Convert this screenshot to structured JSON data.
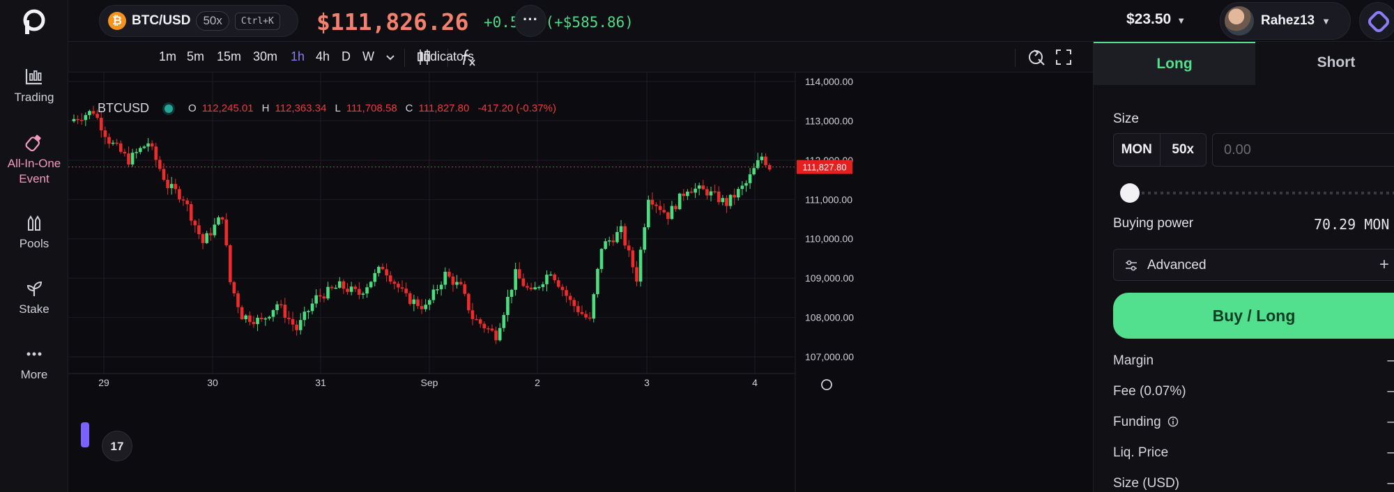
{
  "sidebar": {
    "items": [
      {
        "label": "Trading",
        "icon": "trading-chart-icon"
      },
      {
        "label": "All-In-One Event",
        "icon": "bottle-icon"
      },
      {
        "label": "Pools",
        "icon": "pools-icon"
      },
      {
        "label": "Stake",
        "icon": "sprout-icon"
      },
      {
        "label": "More",
        "icon": "dots-icon"
      }
    ]
  },
  "header": {
    "pair": "BTC/USD",
    "leverage": "50x",
    "shortcut": "Ctrl+K",
    "price": "$111,826.26",
    "change": "+0.52% (+$585.86)",
    "more": "···",
    "balance": "$23.50",
    "username": "Rahez13"
  },
  "toolbar": {
    "timeframes": [
      "1m",
      "5m",
      "15m",
      "30m",
      "1h",
      "4h",
      "D",
      "W"
    ],
    "active_timeframe": "1h",
    "indicators": "Indicators"
  },
  "legend": {
    "symbol": "BTCUSD",
    "o_key": "O",
    "o_val": "112,245.01",
    "h_key": "H",
    "h_val": "112,363.34",
    "l_key": "L",
    "l_val": "111,708.58",
    "c_key": "C",
    "c_val": "111,827.80",
    "change": "-417.20 (-0.37%)"
  },
  "chart_data": {
    "type": "candlestick",
    "symbol": "BTCUSD",
    "interval": "1h",
    "y_ticks": [
      "114,000.00",
      "113,000.00",
      "112,000.00",
      "111,000.00",
      "110,000.00",
      "109,000.00",
      "108,000.00",
      "107,000.00"
    ],
    "ylim": [
      106800,
      114200
    ],
    "x_ticks": [
      "29",
      "30",
      "31",
      "Sep",
      "2",
      "3",
      "4"
    ],
    "last_price": 111827.8,
    "last_price_label": "111,827.80",
    "colors": {
      "up": "#4ade80",
      "down": "#ef2b2b"
    },
    "anchors": [
      {
        "t": 0,
        "v": 113050
      },
      {
        "t": 5,
        "v": 113250
      },
      {
        "t": 9,
        "v": 112500
      },
      {
        "t": 14,
        "v": 112000
      },
      {
        "t": 19,
        "v": 112450
      },
      {
        "t": 24,
        "v": 111350
      },
      {
        "t": 28,
        "v": 111050
      },
      {
        "t": 33,
        "v": 109900
      },
      {
        "t": 38,
        "v": 110600
      },
      {
        "t": 40,
        "v": 108900
      },
      {
        "t": 43,
        "v": 108050
      },
      {
        "t": 48,
        "v": 107900
      },
      {
        "t": 52,
        "v": 108350
      },
      {
        "t": 57,
        "v": 107700
      },
      {
        "t": 62,
        "v": 108500
      },
      {
        "t": 68,
        "v": 108800
      },
      {
        "t": 73,
        "v": 108600
      },
      {
        "t": 79,
        "v": 109300
      },
      {
        "t": 85,
        "v": 108500
      },
      {
        "t": 90,
        "v": 108250
      },
      {
        "t": 95,
        "v": 109100
      },
      {
        "t": 99,
        "v": 108750
      },
      {
        "t": 102,
        "v": 108000
      },
      {
        "t": 108,
        "v": 107550
      },
      {
        "t": 113,
        "v": 109100
      },
      {
        "t": 117,
        "v": 108600
      },
      {
        "t": 122,
        "v": 109200
      },
      {
        "t": 127,
        "v": 108400
      },
      {
        "t": 132,
        "v": 107900
      },
      {
        "t": 135,
        "v": 109800
      },
      {
        "t": 140,
        "v": 110200
      },
      {
        "t": 144,
        "v": 109000
      },
      {
        "t": 147,
        "v": 111100
      },
      {
        "t": 152,
        "v": 110600
      },
      {
        "t": 157,
        "v": 111300
      },
      {
        "t": 162,
        "v": 111200
      },
      {
        "t": 167,
        "v": 110900
      },
      {
        "t": 172,
        "v": 111400
      },
      {
        "t": 176,
        "v": 112100
      },
      {
        "t": 178,
        "v": 111830
      }
    ]
  },
  "panel": {
    "tabs": {
      "long": "Long",
      "short": "Short"
    },
    "size_label": "Size",
    "unit": "MON",
    "leverage": "50x",
    "size_placeholder": "0.00",
    "slider_value": 0,
    "buying_power_label": "Buying power",
    "buying_power_value": "70.29 MON",
    "advanced_label": "Advanced",
    "advanced_plus": "+",
    "action_button": "Buy / Long",
    "rows": [
      {
        "label": "Margin",
        "value": "–"
      },
      {
        "label": "Fee (0.07%)",
        "value": "–"
      },
      {
        "label": "Funding",
        "value": "–"
      },
      {
        "label": "Liq. Price",
        "value": "–"
      },
      {
        "label": "Size (USD)",
        "value": "–"
      }
    ]
  }
}
